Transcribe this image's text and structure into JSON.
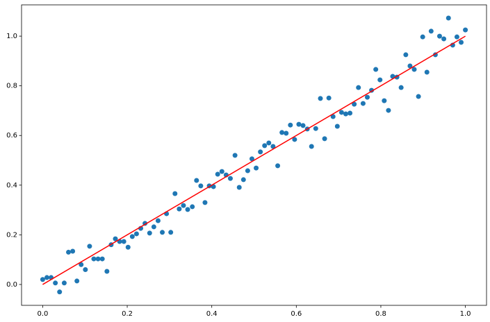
{
  "chart_data": {
    "type": "scatter",
    "xlim": [
      -0.05,
      1.05
    ],
    "ylim": [
      -0.084,
      1.126
    ],
    "xticks": [
      {
        "value": 0,
        "label": "0.0"
      },
      0.2,
      0.4,
      0.6,
      0.8,
      {
        "value": 1,
        "label": "1.0"
      }
    ],
    "yticks": [
      {
        "value": 0,
        "label": "0.0"
      },
      0.2,
      0.4,
      0.6,
      0.8,
      {
        "value": 1,
        "label": "1.0"
      }
    ],
    "grid": false,
    "series": [
      {
        "type": "scatter",
        "color": "#1f77b4",
        "x": [
          0,
          0.01,
          0.02,
          0.03,
          0.04,
          0.051,
          0.061,
          0.071,
          0.081,
          0.091,
          0.101,
          0.111,
          0.121,
          0.131,
          0.141,
          0.152,
          0.162,
          0.172,
          0.182,
          0.192,
          0.202,
          0.212,
          0.222,
          0.232,
          0.242,
          0.253,
          0.263,
          0.273,
          0.283,
          0.293,
          0.303,
          0.313,
          0.323,
          0.333,
          0.343,
          0.354,
          0.364,
          0.374,
          0.384,
          0.394,
          0.404,
          0.414,
          0.424,
          0.434,
          0.444,
          0.455,
          0.465,
          0.475,
          0.485,
          0.495,
          0.505,
          0.515,
          0.525,
          0.535,
          0.545,
          0.556,
          0.566,
          0.576,
          0.586,
          0.596,
          0.606,
          0.616,
          0.626,
          0.636,
          0.646,
          0.657,
          0.667,
          0.677,
          0.687,
          0.697,
          0.707,
          0.717,
          0.727,
          0.737,
          0.747,
          0.758,
          0.768,
          0.778,
          0.788,
          0.798,
          0.808,
          0.818,
          0.828,
          0.838,
          0.848,
          0.859,
          0.869,
          0.879,
          0.889,
          0.899,
          0.909,
          0.919,
          0.929,
          0.939,
          0.949,
          0.96,
          0.97,
          0.98,
          0.99,
          1
        ],
        "values": [
          0.02,
          0.028,
          0.028,
          0.006,
          -0.03,
          0.006,
          0.13,
          0.134,
          0.014,
          0.08,
          0.06,
          0.154,
          0.103,
          0.103,
          0.103,
          0.053,
          0.16,
          0.184,
          0.173,
          0.173,
          0.15,
          0.193,
          0.204,
          0.226,
          0.246,
          0.207,
          0.232,
          0.257,
          0.21,
          0.285,
          0.21,
          0.366,
          0.304,
          0.318,
          0.302,
          0.313,
          0.419,
          0.397,
          0.33,
          0.397,
          0.394,
          0.444,
          0.455,
          0.441,
          0.427,
          0.52,
          0.391,
          0.422,
          0.458,
          0.506,
          0.469,
          0.534,
          0.559,
          0.57,
          0.556,
          0.478,
          0.612,
          0.609,
          0.642,
          0.584,
          0.645,
          0.64,
          0.626,
          0.556,
          0.628,
          0.749,
          0.587,
          0.751,
          0.676,
          0.637,
          0.693,
          0.687,
          0.69,
          0.726,
          0.793,
          0.729,
          0.754,
          0.782,
          0.866,
          0.824,
          0.74,
          0.701,
          0.838,
          0.835,
          0.793,
          0.925,
          0.88,
          0.866,
          0.757,
          0.997,
          0.855,
          1.02,
          0.925,
          1.0,
          0.989,
          1.073,
          0.964,
          0.997,
          0.975,
          1.025
        ]
      },
      {
        "type": "line",
        "color": "#ff0000",
        "x": [
          0,
          1
        ],
        "values": [
          0,
          1
        ]
      }
    ]
  }
}
